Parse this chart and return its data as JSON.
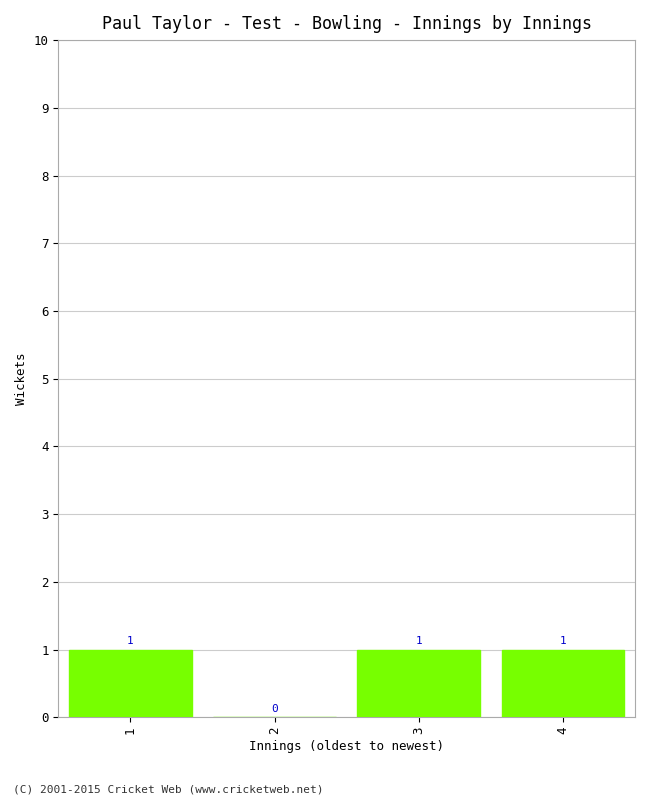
{
  "title": "Paul Taylor - Test - Bowling - Innings by Innings",
  "xlabel": "Innings (oldest to newest)",
  "ylabel": "Wickets",
  "categories": [
    1,
    2,
    3,
    4
  ],
  "values": [
    1,
    0,
    1,
    1
  ],
  "bar_color": "#77ff00",
  "annotation_color": "#0000cc",
  "ylim": [
    0,
    10
  ],
  "yticks": [
    0,
    1,
    2,
    3,
    4,
    5,
    6,
    7,
    8,
    9,
    10
  ],
  "background_color": "#ffffff",
  "grid_color": "#cccccc",
  "footer": "(C) 2001-2015 Cricket Web (www.cricketweb.net)",
  "title_fontsize": 12,
  "axis_label_fontsize": 9,
  "tick_fontsize": 9,
  "annotation_fontsize": 8,
  "footer_fontsize": 8,
  "bar_width": 0.85
}
